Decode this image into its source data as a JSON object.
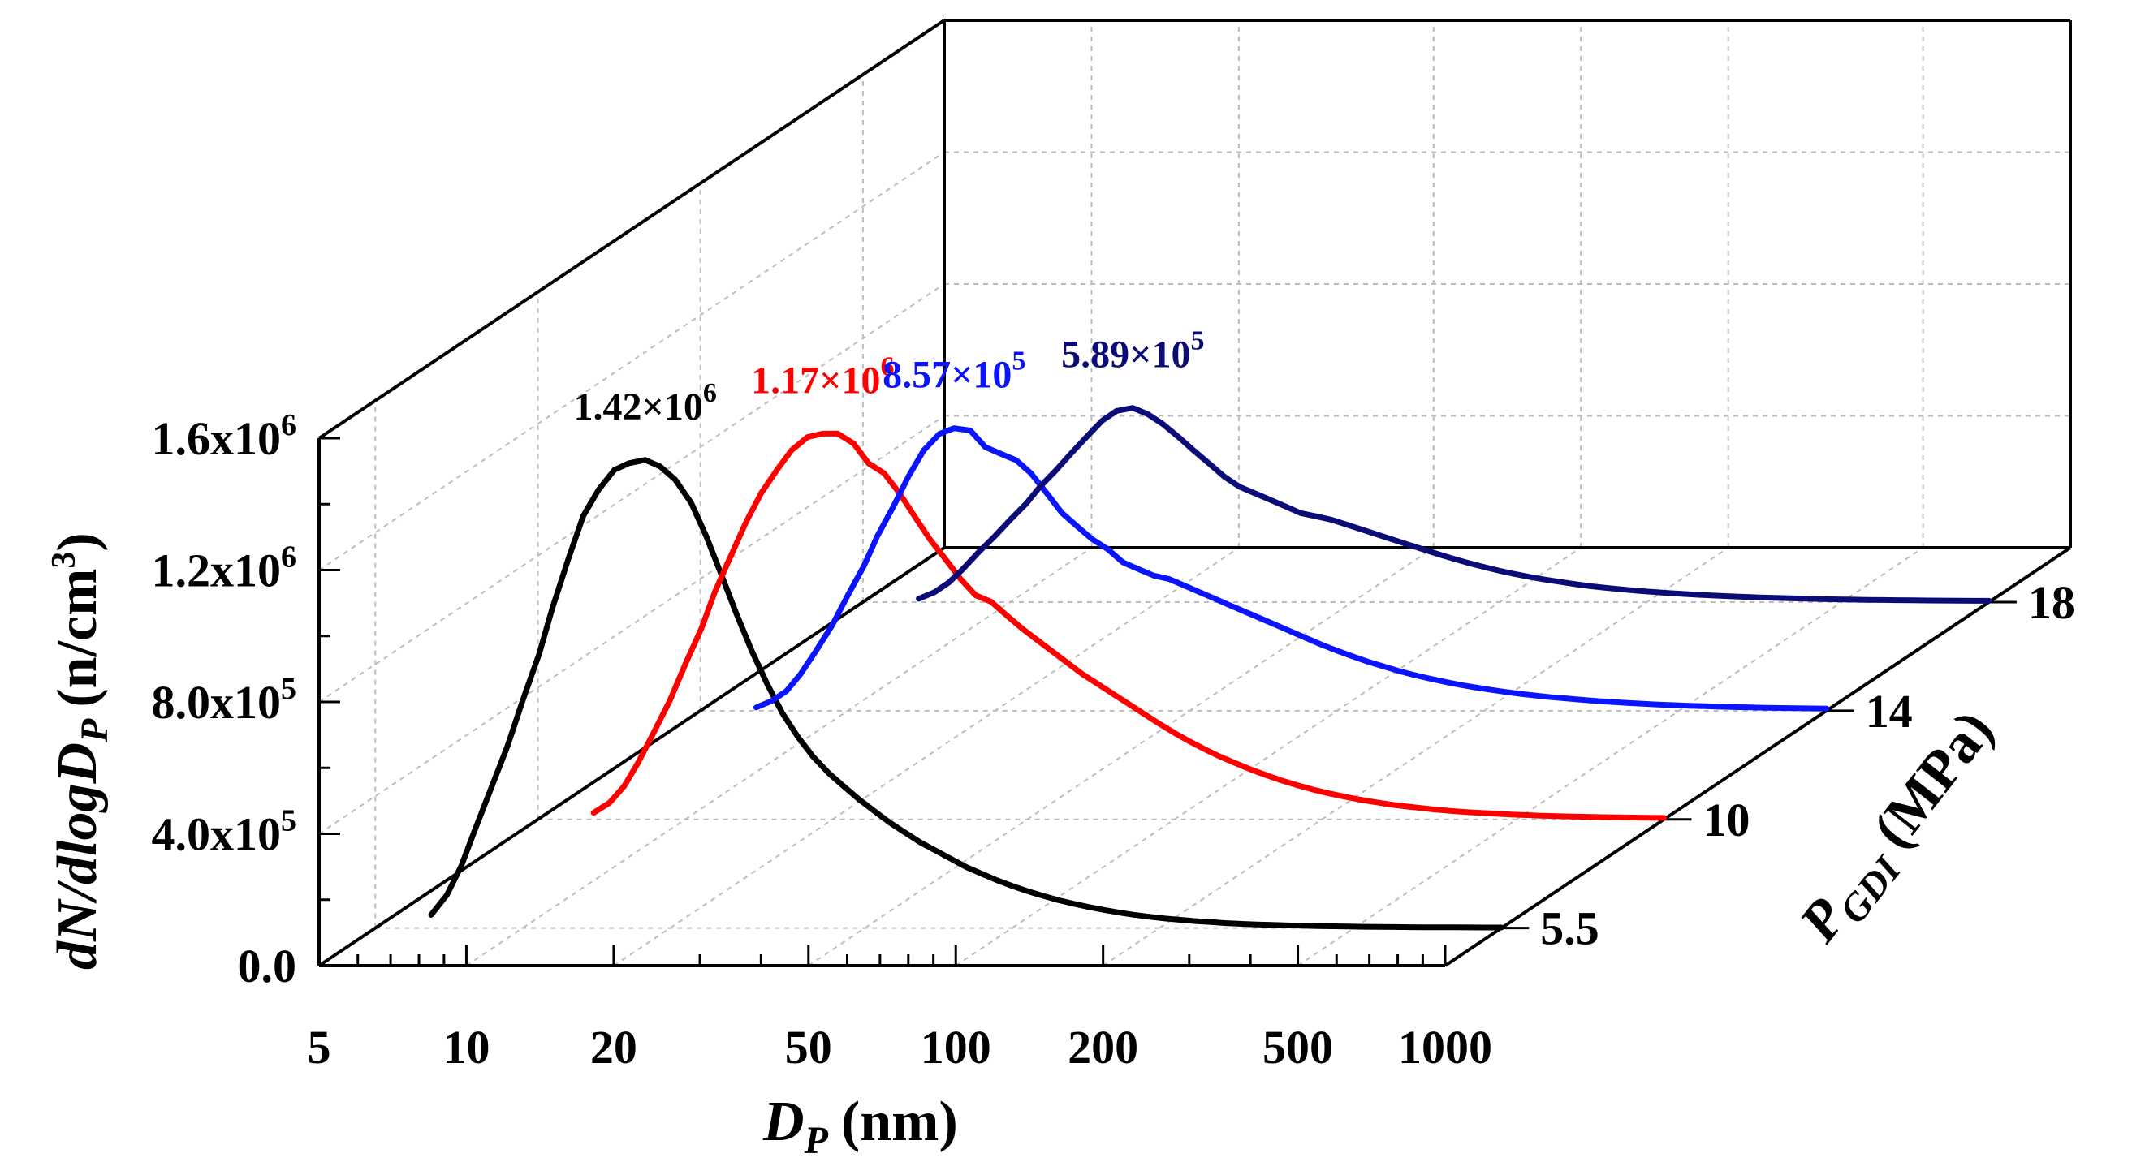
{
  "chart_data": {
    "type": "line",
    "title": "",
    "xlabel": {
      "main": "D",
      "sub": "P",
      "unit": "(nm)"
    },
    "ylabel": {
      "main": "dN/dlogD",
      "sub": "P",
      "unit": "(n/cm",
      "unit_sup": "3",
      "unit_close": ")"
    },
    "zlabel": {
      "main": "P",
      "sub": "GDI",
      "unit": "(MPa)"
    },
    "x_scale": "log",
    "xlim": [
      5,
      1000
    ],
    "x_ticks": [
      5,
      10,
      20,
      50,
      100,
      200,
      500,
      1000
    ],
    "x_tick_labels": [
      "5",
      "10",
      "20",
      "50",
      "100",
      "200",
      "500",
      "1000"
    ],
    "ylim": [
      0,
      1600000
    ],
    "y_ticks": [
      0,
      400000,
      800000,
      1200000,
      1600000
    ],
    "y_tick_labels": [
      {
        "base": "0.0",
        "exp": ""
      },
      {
        "base": "4.0x10",
        "exp": "5"
      },
      {
        "base": "8.0x10",
        "exp": "5"
      },
      {
        "base": "1.2x10",
        "exp": "6"
      },
      {
        "base": "1.6x10",
        "exp": "6"
      }
    ],
    "z_categories": [
      "5.5",
      "10",
      "14",
      "18"
    ],
    "grid": true,
    "series": [
      {
        "name": "5.5",
        "color": "#000000",
        "peak_label": {
          "base": "1.42×10",
          "exp": "6"
        },
        "x": [
          6.5,
          7,
          7.5,
          8,
          8.6,
          9.3,
          10,
          10.8,
          11.5,
          12.4,
          13.3,
          14.3,
          15.4,
          16.5,
          17.8,
          19.1,
          20.5,
          22.1,
          23.7,
          25.5,
          27.4,
          29.4,
          31.6,
          34,
          36.5,
          39.2,
          42.2,
          45.3,
          48.7,
          52.3,
          56.2,
          60.4,
          64.9,
          69.8,
          75,
          80.6,
          86.6,
          93.1,
          100,
          107.5,
          115.5,
          124.1,
          133.4,
          143.3,
          154,
          165.5,
          177.8,
          191.1,
          205.4,
          220.7,
          237.1,
          254.8,
          273.8,
          294.3,
          316.2,
          339.8,
          365.2,
          392.4,
          421.7,
          453.2,
          487,
          523.3,
          562.3,
          604.3,
          649.4,
          697.8,
          749.9,
          805.8,
          866,
          930.6,
          1000
        ],
        "y": [
          40000,
          100000,
          190000,
          300000,
          420000,
          550000,
          690000,
          830000,
          970000,
          1120000,
          1250000,
          1330000,
          1390000,
          1410000,
          1420000,
          1400000,
          1360000,
          1290000,
          1190000,
          1070000,
          950000,
          840000,
          740000,
          650000,
          580000,
          520000,
          470000,
          430000,
          390000,
          355000,
          320000,
          290000,
          260000,
          235000,
          210000,
          185000,
          165000,
          145000,
          128000,
          112000,
          98000,
          85000,
          74000,
          64000,
          55000,
          47000,
          40000,
          34000,
          29000,
          25000,
          21000,
          18000,
          15000,
          12800,
          11000,
          9400,
          8000,
          6900,
          6000,
          5200,
          4500,
          3900,
          3400,
          3000,
          2700,
          2400,
          2200,
          2000,
          1800,
          1700,
          1600
        ]
      },
      {
        "name": "10",
        "color": "#ff0000",
        "peak_label": {
          "base": "1.17×10",
          "exp": "6"
        },
        "x": [
          6.5,
          7,
          7.5,
          8,
          8.6,
          9.3,
          10,
          10.8,
          11.5,
          12.4,
          13.3,
          14.3,
          15.4,
          16.5,
          17.8,
          19.1,
          20.5,
          22.1,
          23.7,
          25.5,
          27.4,
          29.4,
          31.6,
          34,
          36.5,
          39.2,
          42.2,
          45.3,
          48.7,
          52.3,
          56.2,
          60.4,
          64.9,
          69.8,
          75,
          80.6,
          86.6,
          93.1,
          100,
          107.5,
          115.5,
          124.1,
          133.4,
          143.3,
          154,
          165.5,
          177.8,
          191.1,
          205.4,
          220.7,
          237.1,
          254.8,
          273.8,
          294.3,
          316.2,
          339.8,
          365.2,
          392.4,
          421.7,
          453.2,
          487,
          523.3,
          562.3,
          604.3,
          649.4,
          697.8,
          749.9,
          805.8,
          866,
          930.6,
          1000
        ],
        "y": [
          20000,
          50000,
          100000,
          170000,
          260000,
          360000,
          470000,
          580000,
          690000,
          800000,
          900000,
          990000,
          1060000,
          1120000,
          1160000,
          1170000,
          1170000,
          1140000,
          1080000,
          1050000,
          990000,
          920000,
          850000,
          790000,
          730000,
          680000,
          660000,
          620000,
          580000,
          545000,
          510000,
          475000,
          440000,
          410000,
          380000,
          350000,
          320000,
          290000,
          262000,
          236000,
          212000,
          190000,
          170000,
          151000,
          134000,
          118000,
          104000,
          91000,
          80000,
          70000,
          61000,
          53000,
          46000,
          40000,
          35000,
          30000,
          26000,
          22500,
          19500,
          17000,
          14800,
          12900,
          11300,
          9900,
          8700,
          7700,
          6800,
          6100,
          5500,
          5000,
          4600
        ]
      },
      {
        "name": "14",
        "color": "#0a14ff",
        "peak_label": {
          "base": "8.57×10",
          "exp": "5"
        },
        "x": [
          6.5,
          7,
          7.5,
          8,
          8.6,
          9.3,
          10,
          10.8,
          11.5,
          12.4,
          13.3,
          14.3,
          15.4,
          16.5,
          17.8,
          19.1,
          20.5,
          22.1,
          23.7,
          25.5,
          27.4,
          29.4,
          31.6,
          34,
          36.5,
          39.2,
          42.2,
          45.3,
          48.7,
          52.3,
          56.2,
          60.4,
          64.9,
          69.8,
          75,
          80.6,
          86.6,
          93.1,
          100,
          107.5,
          115.5,
          124.1,
          133.4,
          143.3,
          154,
          165.5,
          177.8,
          191.1,
          205.4,
          220.7,
          237.1,
          254.8,
          273.8,
          294.3,
          316.2,
          339.8,
          365.2,
          392.4,
          421.7,
          453.2,
          487,
          523.3,
          562.3,
          604.3,
          649.4,
          697.8,
          749.9,
          805.8,
          866,
          930.6,
          1000
        ],
        "y": [
          10000,
          30000,
          60000,
          110000,
          180000,
          260000,
          350000,
          440000,
          530000,
          620000,
          710000,
          790000,
          840000,
          857000,
          850000,
          800000,
          780000,
          760000,
          720000,
          660000,
          600000,
          560000,
          520000,
          490000,
          450000,
          430000,
          410000,
          400000,
          380000,
          360000,
          340000,
          320000,
          300000,
          280000,
          260000,
          240000,
          220000,
          200000,
          182000,
          165000,
          149000,
          135000,
          121000,
          109000,
          98000,
          88000,
          79000,
          71000,
          64000,
          57000,
          51000,
          46000,
          41000,
          37000,
          33000,
          29500,
          26400,
          23600,
          21100,
          18900,
          16900,
          15100,
          13600,
          12200,
          11000,
          9900,
          9000,
          8200,
          7500,
          6900,
          6400
        ]
      },
      {
        "name": "18",
        "color": "#0c0c78",
        "peak_label": {
          "base": "5.89×10",
          "exp": "5"
        },
        "x": [
          6.5,
          7,
          7.5,
          8,
          8.6,
          9.3,
          10,
          10.8,
          11.5,
          12.4,
          13.3,
          14.3,
          15.4,
          16.5,
          17.8,
          19.1,
          20.5,
          22.1,
          23.7,
          25.5,
          27.4,
          29.4,
          31.6,
          34,
          36.5,
          39.2,
          42.2,
          45.3,
          48.7,
          52.3,
          56.2,
          60.4,
          64.9,
          69.8,
          75,
          80.6,
          86.6,
          93.1,
          100,
          107.5,
          115.5,
          124.1,
          133.4,
          143.3,
          154,
          165.5,
          177.8,
          191.1,
          205.4,
          220.7,
          237.1,
          254.8,
          273.8,
          294.3,
          316.2,
          339.8,
          365.2,
          392.4,
          421.7,
          453.2,
          487,
          523.3,
          562.3,
          604.3,
          649.4,
          697.8,
          749.9,
          805.8,
          866,
          930.6,
          1000
        ],
        "y": [
          10000,
          30000,
          60000,
          100000,
          150000,
          200000,
          250000,
          300000,
          350000,
          400000,
          450000,
          500000,
          550000,
          580000,
          589000,
          570000,
          540000,
          500000,
          460000,
          420000,
          380000,
          350000,
          330000,
          310000,
          290000,
          270000,
          260000,
          250000,
          235000,
          220000,
          205000,
          190000,
          175000,
          160000,
          145000,
          131000,
          118000,
          106000,
          95000,
          85000,
          76000,
          68000,
          61000,
          54000,
          48000,
          43000,
          38500,
          34400,
          30800,
          27600,
          24700,
          22100,
          19800,
          17700,
          15900,
          14200,
          12700,
          11400,
          10200,
          9200,
          8300,
          7500,
          6800,
          6200,
          5700,
          5200,
          4800,
          4500,
          4200,
          3900,
          3700
        ]
      }
    ]
  },
  "colors": {
    "axis": "#000000",
    "grid": "#bdbdbd",
    "s1": "#000000",
    "s2": "#ff0000",
    "s3": "#0a14ff",
    "s4": "#0c0c78"
  }
}
